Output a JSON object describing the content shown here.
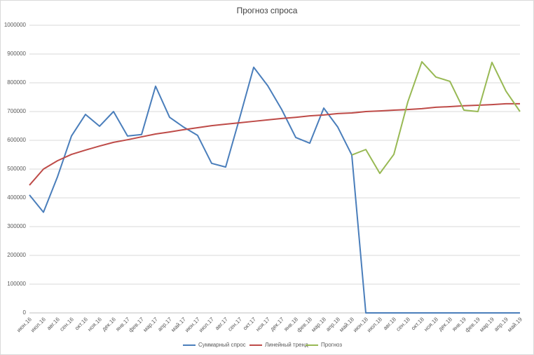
{
  "chart_data": {
    "type": "line",
    "title": "Прогноз спроса",
    "categories": [
      "июн.16",
      "июл.16",
      "авг.16",
      "сен.16",
      "окт.16",
      "ноя.16",
      "дек.16",
      "янв.17",
      "фев.17",
      "мар.17",
      "апр.17",
      "май.17",
      "июн.17",
      "июл.17",
      "авг.17",
      "сен.17",
      "окт.17",
      "ноя.17",
      "дек.17",
      "янв.18",
      "фев.18",
      "мар.18",
      "апр.18",
      "май.18",
      "июн.18",
      "июл.18",
      "авг.18",
      "сен.18",
      "окт.18",
      "ноя.18",
      "дек.18",
      "янв.19",
      "фев.19",
      "мар.19",
      "апр.19",
      "май.19"
    ],
    "series": [
      {
        "name": "Суммарный спрос",
        "color": "#4a7ebb",
        "values": [
          410000,
          350000,
          473000,
          615000,
          690000,
          649000,
          700000,
          615000,
          620000,
          788000,
          680000,
          646000,
          617000,
          520000,
          507000,
          678000,
          854000,
          790000,
          707000,
          610000,
          590000,
          712000,
          646000,
          549000,
          0,
          0,
          0,
          0,
          0,
          0,
          0,
          0,
          0,
          0,
          0,
          0
        ]
      },
      {
        "name": "Линейный тренд",
        "color": "#be4b48",
        "values": [
          444000,
          500000,
          529000,
          551000,
          566000,
          580000,
          593000,
          602000,
          612000,
          622000,
          629000,
          637000,
          644000,
          651000,
          656000,
          661000,
          666000,
          671000,
          676000,
          680000,
          685000,
          688000,
          693000,
          695000,
          700000,
          702000,
          705000,
          707000,
          710000,
          715000,
          717000,
          720000,
          722000,
          724000,
          727000,
          727000
        ]
      },
      {
        "name": "Прогноз",
        "color": "#98b954",
        "values": [
          null,
          null,
          null,
          null,
          null,
          null,
          null,
          null,
          null,
          null,
          null,
          null,
          null,
          null,
          null,
          null,
          null,
          null,
          null,
          null,
          null,
          null,
          null,
          549000,
          568000,
          485000,
          551000,
          734000,
          873000,
          820000,
          805000,
          705000,
          700000,
          871000,
          771000,
          700000
        ]
      }
    ],
    "ylim": [
      0,
      1000000
    ],
    "yticks": [
      0,
      100000,
      200000,
      300000,
      400000,
      500000,
      600000,
      700000,
      800000,
      900000,
      1000000
    ],
    "grid": true,
    "legend": "bottom"
  }
}
